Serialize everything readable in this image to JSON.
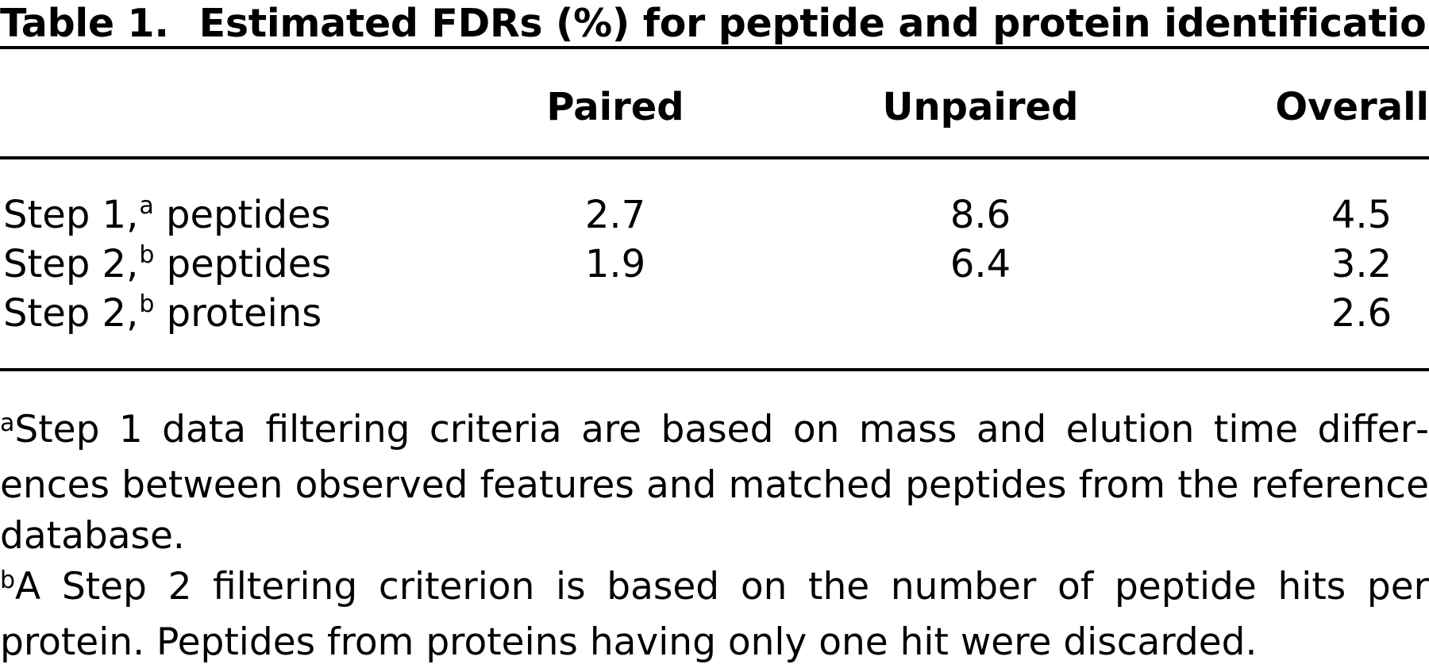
{
  "table": {
    "label": "Table 1.",
    "title": "Estimated FDRs (%) for peptide and protein identifications",
    "columns": [
      "Paired",
      "Unpaired",
      "Overall"
    ],
    "rows": [
      {
        "label": "Step 1,",
        "sup": "a",
        "label_rest": " peptides",
        "paired": "2.7",
        "unpaired": "8.6",
        "overall": "4.5"
      },
      {
        "label": "Step 2,",
        "sup": "b",
        "label_rest": " peptides",
        "paired": "1.9",
        "unpaired": "6.4",
        "overall": "3.2"
      },
      {
        "label": "Step 2,",
        "sup": "b",
        "label_rest": " proteins",
        "paired": "",
        "unpaired": "",
        "overall": "2.6"
      }
    ]
  },
  "footnotes": [
    {
      "marker": "a",
      "text": "Step 1 data filtering criteria are based on mass and elution time differ­ences between observed features and matched peptides from the refer­ence database."
    },
    {
      "marker": "b",
      "text": "A Step 2 filtering criterion is based on the number of peptide hits per protein. Peptides from proteins having only one hit were discarded."
    }
  ]
}
